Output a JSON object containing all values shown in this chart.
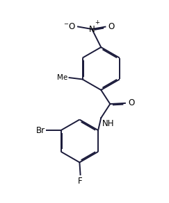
{
  "bg_color": "#ffffff",
  "bond_color": "#1a1a3a",
  "text_color": "#000000",
  "line_width": 1.4,
  "dbo": 0.07,
  "figsize": [
    2.43,
    2.93
  ],
  "dpi": 100,
  "xlim": [
    0,
    10
  ],
  "ylim": [
    0,
    12
  ]
}
